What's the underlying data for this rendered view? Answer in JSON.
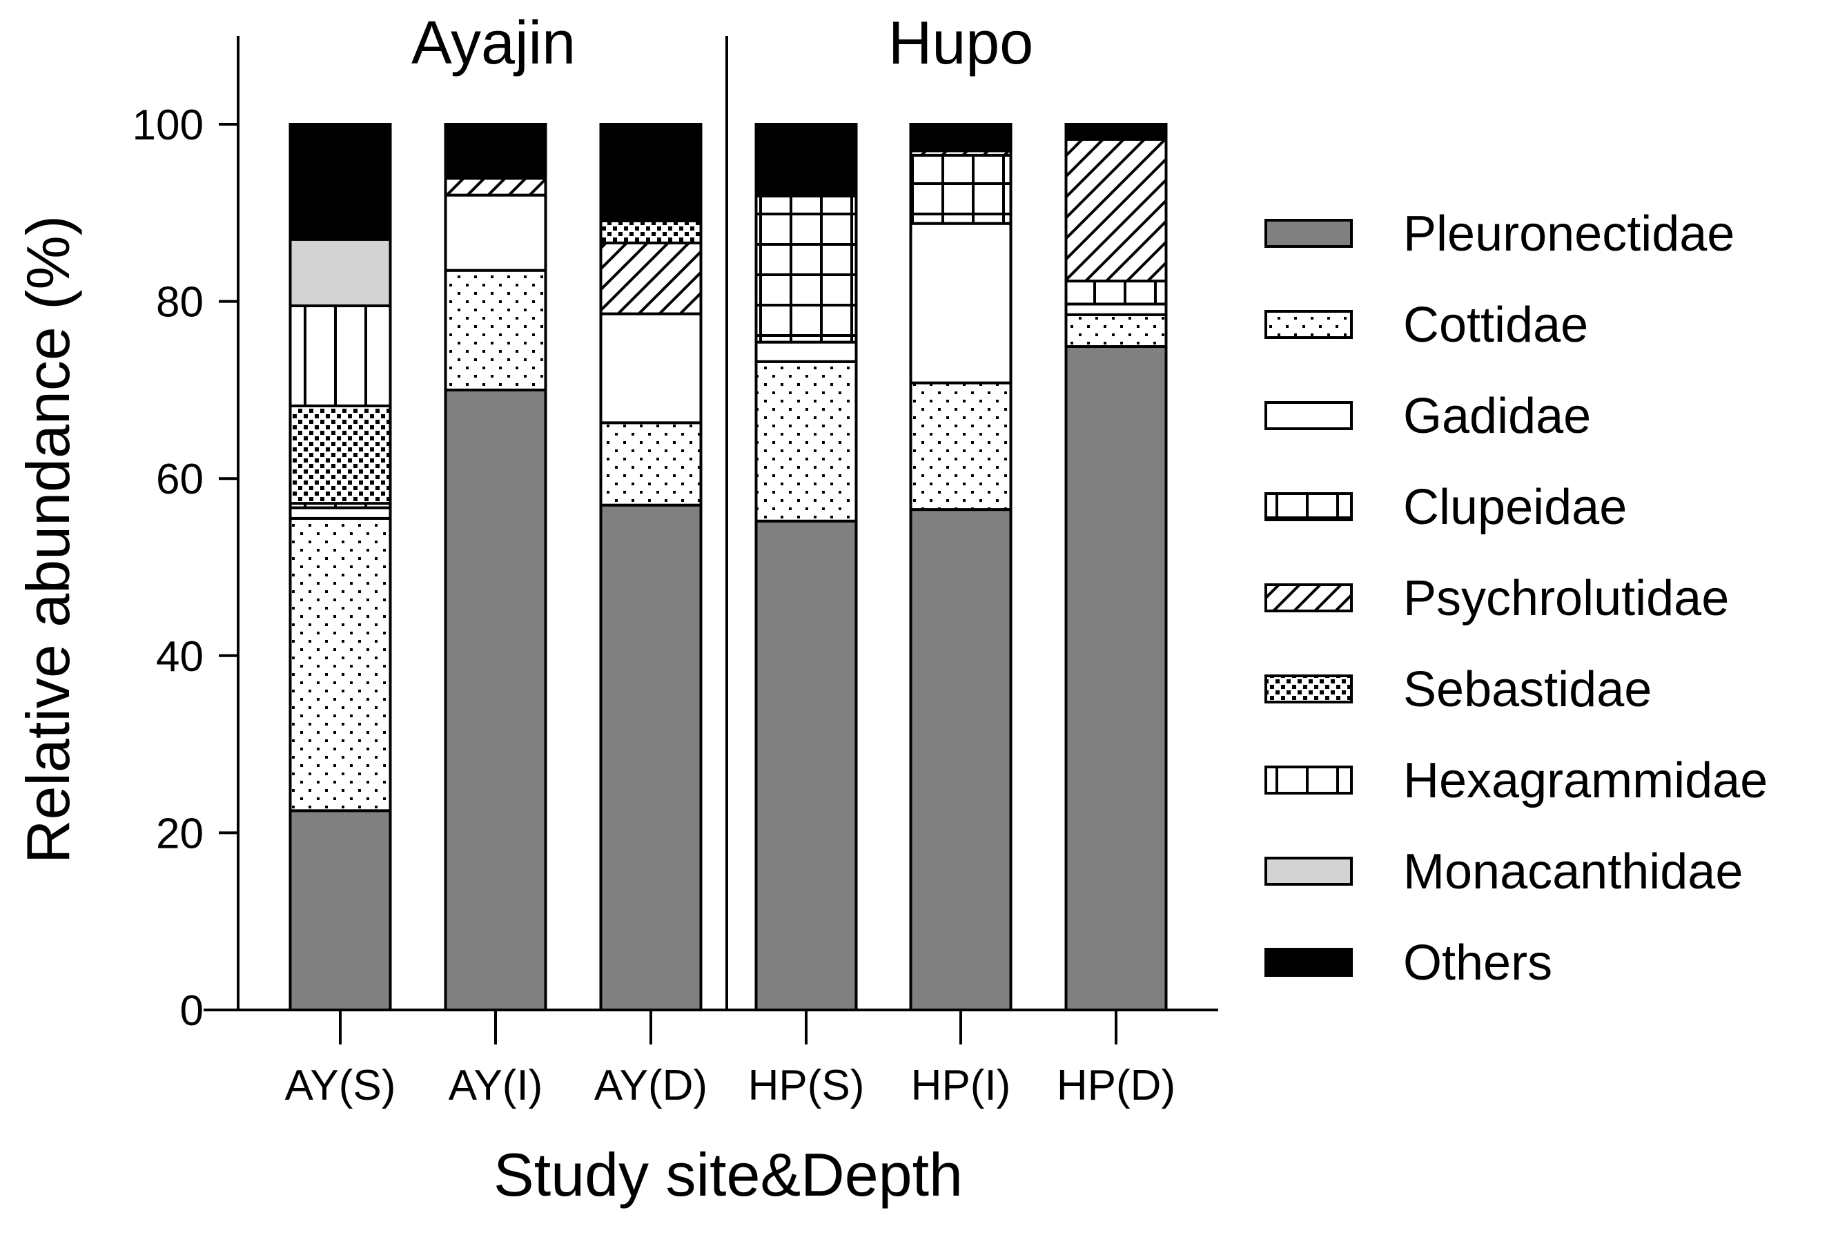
{
  "chart_data": {
    "type": "bar",
    "stacked": true,
    "ylabel": "Relative abundance (%)",
    "xlabel": "Study site&Depth",
    "ylim": [
      0,
      100
    ],
    "yticks": [
      0,
      20,
      40,
      60,
      80,
      100
    ],
    "grid": false,
    "legend_position": "right",
    "groups": [
      {
        "label": "Ayajin",
        "categories": [
          "AY(S)",
          "AY(I)",
          "AY(D)"
        ]
      },
      {
        "label": "Hupo",
        "categories": [
          "HP(S)",
          "HP(I)",
          "HP(D)"
        ]
      }
    ],
    "categories": [
      "AY(S)",
      "AY(I)",
      "AY(D)",
      "HP(S)",
      "HP(I)",
      "HP(D)"
    ],
    "series": [
      {
        "name": "Pleuronectidae",
        "pattern": "solid-gray",
        "color": "#808080",
        "values": [
          22.5,
          70.0,
          57.0,
          55.2,
          56.5,
          74.9
        ]
      },
      {
        "name": "Cottidae",
        "pattern": "dots",
        "color": "#ffffff",
        "values": [
          33.0,
          13.5,
          9.3,
          18.0,
          14.3,
          3.6
        ]
      },
      {
        "name": "Gadidae",
        "pattern": "white",
        "color": "#ffffff",
        "values": [
          1.2,
          8.5,
          12.3,
          2.2,
          18.0,
          1.2
        ]
      },
      {
        "name": "Clupeidae",
        "pattern": "grid",
        "color": "#ffffff",
        "values": [
          0.5,
          0.0,
          0.0,
          16.5,
          7.7,
          2.6
        ]
      },
      {
        "name": "Psychrolutidae",
        "pattern": "diagonal",
        "color": "#ffffff",
        "values": [
          0.0,
          1.9,
          8.0,
          0.0,
          0.5,
          16.0
        ]
      },
      {
        "name": "Sebastidae",
        "pattern": "checker",
        "color": "#ffffff",
        "values": [
          11.0,
          0.1,
          2.5,
          0.1,
          0.0,
          0.2
        ]
      },
      {
        "name": "Hexagrammidae",
        "pattern": "vertical",
        "color": "#ffffff",
        "values": [
          11.3,
          0.0,
          0.0,
          0.0,
          0.0,
          0.0
        ]
      },
      {
        "name": "Monacanthidae",
        "pattern": "solid-lightgray",
        "color": "#d3d3d3",
        "values": [
          7.5,
          0.0,
          0.0,
          0.0,
          0.0,
          0.0
        ]
      },
      {
        "name": "Others",
        "pattern": "solid-black",
        "color": "#000000",
        "values": [
          13.0,
          6.0,
          10.9,
          8.0,
          3.0,
          1.5
        ]
      }
    ]
  }
}
